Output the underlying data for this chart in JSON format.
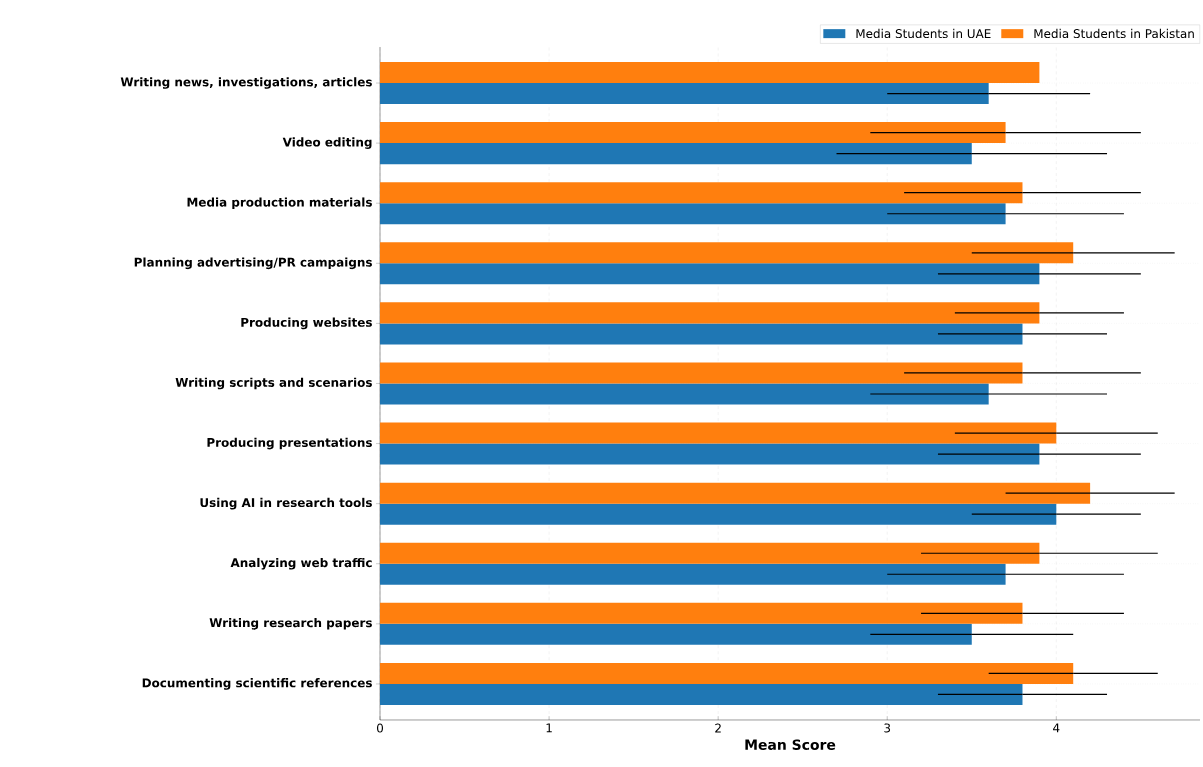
{
  "chart_data": {
    "type": "bar",
    "orientation": "horizontal",
    "xlabel": "Mean Score",
    "categories": [
      "Writing news, investigations, articles",
      "Video editing",
      "Media production materials",
      "Planning advertising/PR campaigns",
      "Producing websites",
      "Writing scripts and scenarios",
      "Producing presentations",
      "Using AI in research tools",
      "Analyzing web traffic",
      "Writing research papers",
      "Documenting scientific references"
    ],
    "series": [
      {
        "name": "Media Students in UAE",
        "color": "#1f77b4",
        "values": [
          3.6,
          3.5,
          3.7,
          3.9,
          3.8,
          3.6,
          3.9,
          4.0,
          3.7,
          3.5,
          3.8
        ],
        "errors": [
          0.6,
          0.8,
          0.7,
          0.6,
          0.5,
          0.7,
          0.6,
          0.5,
          0.7,
          0.6,
          0.5
        ]
      },
      {
        "name": "Media Students in Pakistan",
        "color": "#ff7f0e",
        "values": [
          3.9,
          3.7,
          3.8,
          4.1,
          3.9,
          3.8,
          4.0,
          4.2,
          3.9,
          3.8,
          4.1
        ],
        "errors": [
          null,
          0.8,
          0.7,
          0.6,
          0.5,
          0.7,
          0.6,
          0.5,
          0.7,
          0.6,
          0.5
        ]
      }
    ],
    "xlim": [
      0,
      4.85
    ],
    "xticks": [
      0,
      1,
      2,
      3,
      4
    ],
    "grid": true,
    "legend": "top right"
  }
}
